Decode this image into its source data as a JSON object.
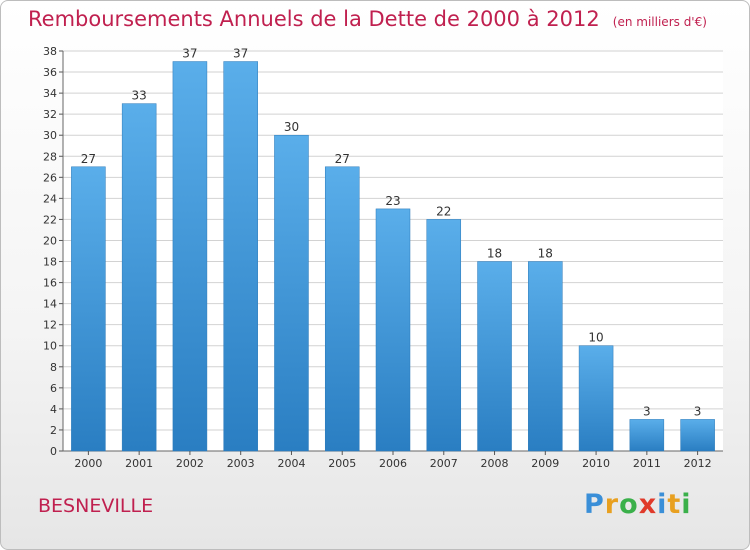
{
  "chart_data": {
    "type": "bar",
    "title": "Remboursements Annuels de la Dette de 2000 à 2012",
    "subtitle": "(en milliers d'€)",
    "categories": [
      "2000",
      "2001",
      "2002",
      "2003",
      "2004",
      "2005",
      "2006",
      "2007",
      "2008",
      "2009",
      "2010",
      "2011",
      "2012"
    ],
    "values": [
      27,
      33,
      37,
      37,
      30,
      27,
      23,
      22,
      18,
      18,
      10,
      3,
      3
    ],
    "ylim": [
      0,
      38
    ],
    "yticks": [
      0,
      2,
      4,
      6,
      8,
      10,
      12,
      14,
      16,
      18,
      20,
      22,
      24,
      26,
      28,
      30,
      32,
      34,
      36,
      38
    ],
    "grid": true,
    "xlabel": "",
    "ylabel": "",
    "colors": {
      "bar_top": "#5aaeea",
      "bar_bottom": "#2a7ec2",
      "title": "#c0204f"
    }
  },
  "commune": "BESNEVILLE",
  "logo": {
    "letters": [
      "P",
      "r",
      "o",
      "x",
      "i",
      "t",
      "i"
    ],
    "colors": [
      "#3a8fd8",
      "#e8a020",
      "#3ab04a",
      "#e03a2a",
      "#3a8fd8",
      "#e8a020",
      "#3ab04a"
    ]
  }
}
